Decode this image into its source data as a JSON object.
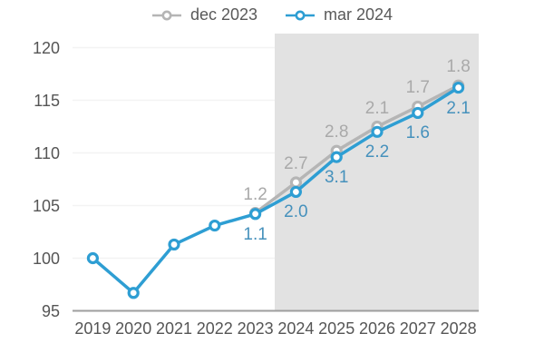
{
  "legend": {
    "items": [
      {
        "label": "dec 2023"
      },
      {
        "label": "mar 2024"
      }
    ]
  },
  "colors": {
    "series_dec2023_line": "#b5b5b5",
    "series_dec2023_label": "#a9a9a9",
    "series_mar2024_line": "#2e9ed3",
    "series_mar2024_label": "#4691bc",
    "forecast_shading": "#e2e2e2",
    "gridline": "#f3f3f3",
    "axis_line": "#9e9e9e",
    "axis_text": "#555555"
  },
  "chart_data": {
    "type": "line",
    "title": "",
    "xlabel": "",
    "ylabel": "",
    "categories": [
      "2019",
      "2020",
      "2021",
      "2022",
      "2023",
      "2024",
      "2025",
      "2026",
      "2027",
      "2028"
    ],
    "y_ticks": [
      "95",
      "100",
      "105",
      "110",
      "115",
      "120"
    ],
    "ylim": [
      95,
      121.3
    ],
    "grid": "faint horizontal",
    "legend_position": "top-center",
    "forecast_region": {
      "from_category": "2024",
      "to_category": "2028",
      "note": "shaded gray band over forecast years"
    },
    "series": [
      {
        "name": "dec 2023",
        "color": "#b5b5b5",
        "label_color": "#a9a9a9",
        "start_index": 4,
        "values": [
          104.3,
          107.2,
          110.2,
          112.5,
          114.4,
          116.4
        ],
        "point_labels": [
          "1.2",
          "2.7",
          "2.8",
          "2.1",
          "1.7",
          "1.8"
        ],
        "label_side": "above"
      },
      {
        "name": "mar 2024",
        "color": "#2e9ed3",
        "label_color": "#4691bc",
        "start_index": 0,
        "values": [
          100.0,
          96.7,
          101.3,
          103.1,
          104.2,
          106.3,
          109.6,
          112.0,
          113.8,
          116.2
        ],
        "point_labels": [
          "",
          "",
          "",
          "",
          "1.1",
          "2.0",
          "3.1",
          "2.2",
          "1.6",
          "2.1"
        ],
        "label_side": "below"
      }
    ]
  }
}
